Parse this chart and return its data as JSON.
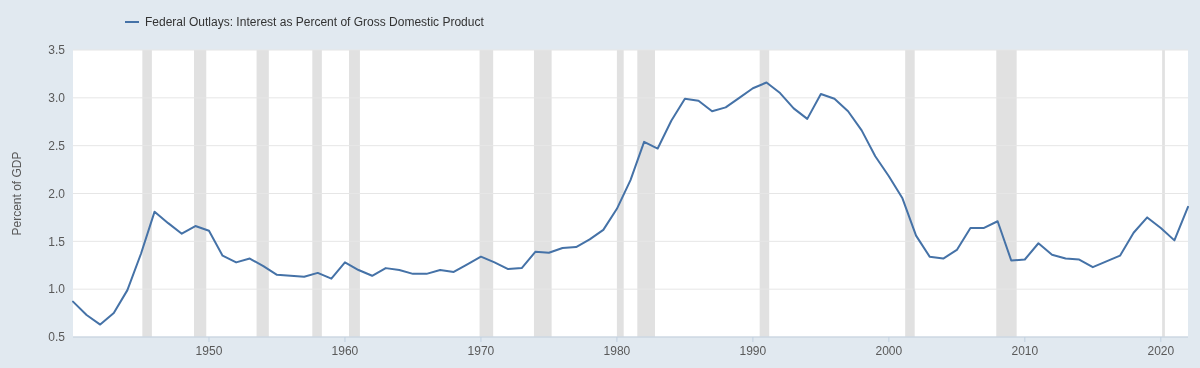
{
  "chart_data": {
    "type": "line",
    "ylabel": "Percent of GDP",
    "x": [
      1940,
      1941,
      1942,
      1943,
      1944,
      1945,
      1946,
      1947,
      1948,
      1949,
      1950,
      1951,
      1952,
      1953,
      1954,
      1955,
      1956,
      1957,
      1958,
      1959,
      1960,
      1961,
      1962,
      1963,
      1964,
      1965,
      1966,
      1967,
      1968,
      1969,
      1970,
      1971,
      1972,
      1973,
      1974,
      1975,
      1976,
      1977,
      1978,
      1979,
      1980,
      1981,
      1982,
      1983,
      1984,
      1985,
      1986,
      1987,
      1988,
      1989,
      1990,
      1991,
      1992,
      1993,
      1994,
      1995,
      1996,
      1997,
      1998,
      1999,
      2000,
      2001,
      2002,
      2003,
      2004,
      2005,
      2006,
      2007,
      2008,
      2009,
      2010,
      2011,
      2012,
      2013,
      2014,
      2015,
      2016,
      2017,
      2018,
      2019,
      2020,
      2021,
      2022
    ],
    "series": [
      {
        "name": "Federal Outlays: Interest as Percent of Gross Domestic Product",
        "color": "#4572a7",
        "values": [
          0.87,
          0.73,
          0.63,
          0.75,
          0.99,
          1.37,
          1.81,
          1.69,
          1.58,
          1.66,
          1.61,
          1.35,
          1.28,
          1.32,
          1.24,
          1.15,
          1.14,
          1.13,
          1.17,
          1.11,
          1.28,
          1.2,
          1.14,
          1.22,
          1.2,
          1.16,
          1.16,
          1.2,
          1.18,
          1.26,
          1.34,
          1.28,
          1.21,
          1.22,
          1.39,
          1.38,
          1.43,
          1.44,
          1.52,
          1.62,
          1.84,
          2.14,
          2.54,
          2.47,
          2.76,
          2.99,
          2.97,
          2.86,
          2.9,
          3.0,
          3.1,
          3.16,
          3.05,
          2.89,
          2.78,
          3.04,
          2.99,
          2.86,
          2.66,
          2.39,
          2.18,
          1.95,
          1.56,
          1.34,
          1.32,
          1.41,
          1.64,
          1.64,
          1.71,
          1.3,
          1.31,
          1.48,
          1.36,
          1.32,
          1.31,
          1.23,
          1.29,
          1.35,
          1.59,
          1.75,
          1.64,
          1.51,
          1.86
        ]
      }
    ],
    "xlim": [
      1940,
      2022
    ],
    "xticks": [
      1950,
      1960,
      1970,
      1980,
      1990,
      2000,
      2010,
      2020
    ],
    "ylim": [
      0.5,
      3.5
    ],
    "yticks": [
      0.5,
      {
        "value": 1,
        "label": "1.0"
      },
      1.5,
      {
        "value": 2,
        "label": "2.0"
      },
      2.5,
      {
        "value": 3,
        "label": "3.0"
      },
      3.5
    ],
    "bands": [
      {
        "axis": "x",
        "from": 1945.1,
        "to": 1945.8,
        "color": "#e1e1e1"
      },
      {
        "axis": "x",
        "from": 1948.9,
        "to": 1949.8,
        "color": "#e1e1e1"
      },
      {
        "axis": "x",
        "from": 1953.5,
        "to": 1954.4,
        "color": "#e1e1e1"
      },
      {
        "axis": "x",
        "from": 1957.6,
        "to": 1958.3,
        "color": "#e1e1e1"
      },
      {
        "axis": "x",
        "from": 1960.3,
        "to": 1961.1,
        "color": "#e1e1e1"
      },
      {
        "axis": "x",
        "from": 1969.9,
        "to": 1970.9,
        "color": "#e1e1e1"
      },
      {
        "axis": "x",
        "from": 1973.9,
        "to": 1975.2,
        "color": "#e1e1e1"
      },
      {
        "axis": "x",
        "from": 1980.0,
        "to": 1980.5,
        "color": "#e1e1e1"
      },
      {
        "axis": "x",
        "from": 1981.5,
        "to": 1982.8,
        "color": "#e1e1e1"
      },
      {
        "axis": "x",
        "from": 1990.5,
        "to": 1991.2,
        "color": "#e1e1e1"
      },
      {
        "axis": "x",
        "from": 2001.2,
        "to": 2001.9,
        "color": "#e1e1e1"
      },
      {
        "axis": "x",
        "from": 2007.9,
        "to": 2009.4,
        "color": "#e1e1e1"
      },
      {
        "axis": "x",
        "from": 2020.1,
        "to": 2020.3,
        "color": "#e1e1e1"
      }
    ],
    "grid": "y",
    "legend": "top left"
  }
}
